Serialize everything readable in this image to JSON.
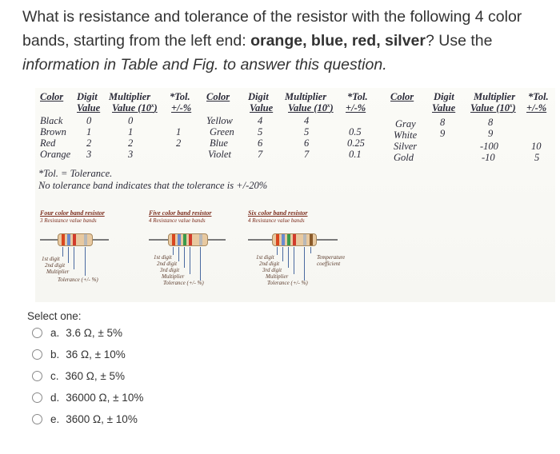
{
  "question": {
    "line1": "What is resistance and tolerance of the resistor with the following 4 color",
    "line2_start": "bands, starting from the left end: ",
    "line2_bold": "orange, blue, red, silver",
    "line2_end": "? Use the",
    "line3": "information in Table and Fig. to answer this question."
  },
  "table": {
    "headers": {
      "color": "Color",
      "digit": "Digit",
      "value": "Value",
      "multiplier": "Multiplier",
      "mult_value_a": "Value (10",
      "mult_value_b": ")",
      "tol": "*Tol.",
      "tol_pct": "+/-%"
    },
    "col1": [
      {
        "color": "Black",
        "digit": "0",
        "mult": "0",
        "tol": ""
      },
      {
        "color": "Brown",
        "digit": "1",
        "mult": "1",
        "tol": "1"
      },
      {
        "color": "Red",
        "digit": "2",
        "mult": "2",
        "tol": "2"
      },
      {
        "color": "Orange",
        "digit": "3",
        "mult": "3",
        "tol": ""
      }
    ],
    "col2": [
      {
        "color": "Yellow",
        "digit": "4",
        "mult": "4",
        "tol": ""
      },
      {
        "color": "Green",
        "digit": "5",
        "mult": "5",
        "tol": "0.5"
      },
      {
        "color": "Blue",
        "digit": "6",
        "mult": "6",
        "tol": "0.25"
      },
      {
        "color": "Violet",
        "digit": "7",
        "mult": "7",
        "tol": "0.1"
      }
    ],
    "col3": [
      {
        "color": "Gray",
        "digit": "8",
        "mult": "8",
        "tol": ""
      },
      {
        "color": "White",
        "digit": "9",
        "mult": "9",
        "tol": ""
      },
      {
        "color": "Silver",
        "digit": "",
        "mult": "-100",
        "tol": "10"
      },
      {
        "color": "Gold",
        "digit": "",
        "mult": "-10",
        "tol": "5"
      }
    ],
    "note1": "*Tol. = Tolerance.",
    "note2": "No tolerance band indicates that the tolerance is +/-20%"
  },
  "diagrams": [
    {
      "title": "Four color band resistor",
      "subtitle": "3 Resistance value bands",
      "labels": [
        "1st digit",
        "2nd digit",
        "Multiplier",
        "Tolerance (+/- %)"
      ],
      "bands": [
        "#d9461e",
        "#6a8bd0",
        "#d23b2b",
        "#b8b8b8"
      ]
    },
    {
      "title": "Five color band resistor",
      "subtitle": "4 Resistance value bands",
      "labels": [
        "1st digit",
        "2nd digit",
        "3rd digit",
        "Multiplier",
        "Tolerance (+/- %)"
      ],
      "bands": [
        "#d9461e",
        "#6a8bd0",
        "#3a9a4a",
        "#d23b2b",
        "#b8b8b8"
      ]
    },
    {
      "title": "Six color band resistor",
      "subtitle": "4 Resistance value bands",
      "labels": [
        "1st digit",
        "2nd digit",
        "3rd digit",
        "Multiplier",
        "Tolerance (+/- %)",
        "Temperature coefficient"
      ],
      "bands": [
        "#d9461e",
        "#6a8bd0",
        "#3a9a4a",
        "#d23b2b",
        "#b8b8b8",
        "#8a5a2a"
      ]
    }
  ],
  "answers": {
    "prompt": "Select one:",
    "options": [
      {
        "letter": "a.",
        "text": "3.6 Ω, ± 5%"
      },
      {
        "letter": "b.",
        "text": "36 Ω, ± 10%"
      },
      {
        "letter": "c.",
        "text": "360 Ω, ± 5%"
      },
      {
        "letter": "d.",
        "text": "36000 Ω, ± 10%"
      },
      {
        "letter": "e.",
        "text": "3600 Ω, ± 10%"
      }
    ]
  }
}
